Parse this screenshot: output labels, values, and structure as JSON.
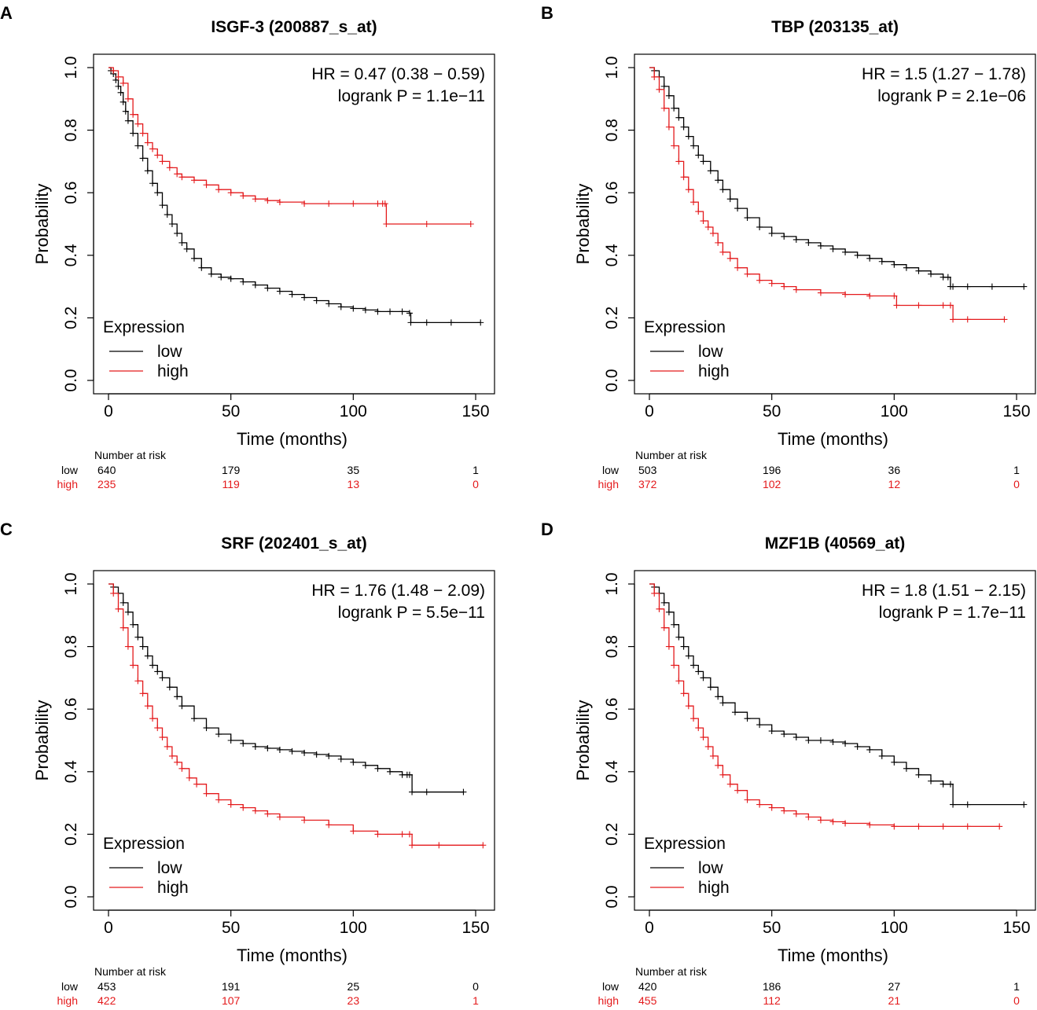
{
  "chart_data": [
    {
      "panel": "A",
      "type": "line",
      "subtype": "kaplan-meier",
      "title": "ISGF-3 (200887_s_at)",
      "xlabel": "Time (months)",
      "ylabel": "Probability",
      "xlim": [
        0,
        150
      ],
      "ylim": [
        0,
        1
      ],
      "xticks": [
        "0",
        "50",
        "100",
        "150"
      ],
      "yticks": [
        "0.0",
        "0.2",
        "0.4",
        "0.6",
        "0.8",
        "1.0"
      ],
      "hr_text": "HR = 0.47 (0.38 − 0.59)",
      "logrank_text": "logrank P = 1.1e−11",
      "legend_title": "Expression",
      "legend_labels": [
        "low",
        "high"
      ],
      "series": [
        {
          "name": "low",
          "color": "#000000",
          "x": [
            0,
            1,
            2,
            3,
            4,
            5,
            6,
            7,
            8,
            10,
            12,
            14,
            16,
            18,
            20,
            22,
            24,
            26,
            28,
            30,
            32,
            35,
            38,
            42,
            46,
            50,
            55,
            60,
            65,
            70,
            75,
            80,
            85,
            90,
            95,
            100,
            105,
            110,
            115,
            120,
            123,
            123.5,
            130,
            140,
            152
          ],
          "y": [
            1.0,
            0.99,
            0.98,
            0.96,
            0.94,
            0.92,
            0.89,
            0.86,
            0.83,
            0.79,
            0.75,
            0.71,
            0.67,
            0.63,
            0.6,
            0.56,
            0.53,
            0.5,
            0.47,
            0.44,
            0.42,
            0.39,
            0.36,
            0.34,
            0.33,
            0.325,
            0.315,
            0.305,
            0.295,
            0.285,
            0.275,
            0.265,
            0.255,
            0.245,
            0.235,
            0.23,
            0.225,
            0.22,
            0.22,
            0.22,
            0.215,
            0.185,
            0.185,
            0.185,
            0.185
          ]
        },
        {
          "name": "high",
          "color": "#e41a1c",
          "x": [
            0,
            2,
            4,
            6,
            8,
            10,
            12,
            14,
            16,
            18,
            20,
            22,
            25,
            28,
            30,
            35,
            40,
            45,
            50,
            55,
            60,
            65,
            70,
            80,
            90,
            100,
            110,
            112,
            113,
            113.5,
            130,
            148
          ],
          "y": [
            1.0,
            0.99,
            0.97,
            0.95,
            0.9,
            0.85,
            0.82,
            0.79,
            0.76,
            0.74,
            0.72,
            0.7,
            0.68,
            0.66,
            0.65,
            0.64,
            0.625,
            0.61,
            0.6,
            0.59,
            0.58,
            0.575,
            0.57,
            0.565,
            0.565,
            0.565,
            0.565,
            0.565,
            0.565,
            0.5,
            0.5,
            0.5
          ]
        }
      ],
      "risk_table": {
        "header": "Number at risk",
        "times": [
          0,
          50,
          100,
          150
        ],
        "rows": [
          {
            "label": "low",
            "color": "#000000",
            "values": [
              "640",
              "179",
              "35",
              "1"
            ]
          },
          {
            "label": "high",
            "color": "#e41a1c",
            "values": [
              "235",
              "119",
              "13",
              "0"
            ]
          }
        ]
      }
    },
    {
      "panel": "B",
      "type": "line",
      "subtype": "kaplan-meier",
      "title": "TBP (203135_at)",
      "xlabel": "Time (months)",
      "ylabel": "Probability",
      "xlim": [
        0,
        150
      ],
      "ylim": [
        0,
        1
      ],
      "xticks": [
        "0",
        "50",
        "100",
        "150"
      ],
      "yticks": [
        "0.0",
        "0.2",
        "0.4",
        "0.6",
        "0.8",
        "1.0"
      ],
      "hr_text": "HR = 1.5 (1.27 − 1.78)",
      "logrank_text": "logrank P = 2.1e−06",
      "legend_title": "Expression",
      "legend_labels": [
        "low",
        "high"
      ],
      "series": [
        {
          "name": "low",
          "color": "#000000",
          "x": [
            0,
            2,
            4,
            6,
            8,
            10,
            12,
            14,
            16,
            18,
            20,
            22,
            25,
            28,
            30,
            33,
            36,
            40,
            45,
            50,
            55,
            60,
            65,
            70,
            75,
            80,
            85,
            90,
            95,
            100,
            105,
            110,
            115,
            120,
            122,
            123,
            124,
            130,
            140,
            153
          ],
          "y": [
            1.0,
            0.99,
            0.97,
            0.94,
            0.91,
            0.87,
            0.84,
            0.81,
            0.78,
            0.75,
            0.72,
            0.7,
            0.67,
            0.64,
            0.61,
            0.58,
            0.55,
            0.52,
            0.49,
            0.47,
            0.46,
            0.45,
            0.44,
            0.43,
            0.42,
            0.41,
            0.4,
            0.39,
            0.38,
            0.37,
            0.36,
            0.35,
            0.34,
            0.33,
            0.33,
            0.3,
            0.3,
            0.3,
            0.3,
            0.3
          ]
        },
        {
          "name": "high",
          "color": "#e41a1c",
          "x": [
            0,
            2,
            4,
            6,
            8,
            10,
            12,
            14,
            16,
            18,
            20,
            22,
            24,
            26,
            28,
            30,
            33,
            36,
            40,
            45,
            50,
            55,
            60,
            70,
            80,
            90,
            100,
            101,
            110,
            120,
            123,
            124,
            130,
            145
          ],
          "y": [
            1.0,
            0.97,
            0.93,
            0.87,
            0.81,
            0.75,
            0.7,
            0.65,
            0.61,
            0.57,
            0.54,
            0.51,
            0.49,
            0.47,
            0.44,
            0.41,
            0.39,
            0.36,
            0.34,
            0.32,
            0.31,
            0.3,
            0.29,
            0.28,
            0.275,
            0.27,
            0.27,
            0.24,
            0.24,
            0.24,
            0.24,
            0.195,
            0.195,
            0.195
          ]
        }
      ],
      "risk_table": {
        "header": "Number at risk",
        "times": [
          0,
          50,
          100,
          150
        ],
        "rows": [
          {
            "label": "low",
            "color": "#000000",
            "values": [
              "503",
              "196",
              "36",
              "1"
            ]
          },
          {
            "label": "high",
            "color": "#e41a1c",
            "values": [
              "372",
              "102",
              "12",
              "0"
            ]
          }
        ]
      }
    },
    {
      "panel": "C",
      "type": "line",
      "subtype": "kaplan-meier",
      "title": "SRF (202401_s_at)",
      "xlabel": "Time (months)",
      "ylabel": "Probability",
      "xlim": [
        0,
        150
      ],
      "ylim": [
        0,
        1
      ],
      "xticks": [
        "0",
        "50",
        "100",
        "150"
      ],
      "yticks": [
        "0.0",
        "0.2",
        "0.4",
        "0.6",
        "0.8",
        "1.0"
      ],
      "hr_text": "HR = 1.76 (1.48 − 2.09)",
      "logrank_text": "logrank P = 5.5e−11",
      "legend_title": "Expression",
      "legend_labels": [
        "low",
        "high"
      ],
      "series": [
        {
          "name": "low",
          "color": "#000000",
          "x": [
            0,
            2,
            4,
            6,
            8,
            10,
            12,
            14,
            16,
            18,
            20,
            22,
            25,
            28,
            30,
            35,
            40,
            45,
            50,
            55,
            60,
            65,
            70,
            75,
            80,
            85,
            90,
            95,
            100,
            105,
            110,
            115,
            120,
            122,
            123,
            124,
            130,
            145
          ],
          "y": [
            1.0,
            0.99,
            0.97,
            0.94,
            0.91,
            0.87,
            0.83,
            0.8,
            0.77,
            0.74,
            0.72,
            0.7,
            0.67,
            0.64,
            0.61,
            0.57,
            0.54,
            0.52,
            0.5,
            0.49,
            0.48,
            0.475,
            0.47,
            0.465,
            0.46,
            0.455,
            0.45,
            0.44,
            0.43,
            0.42,
            0.41,
            0.4,
            0.39,
            0.39,
            0.39,
            0.335,
            0.335,
            0.335
          ]
        },
        {
          "name": "high",
          "color": "#e41a1c",
          "x": [
            0,
            2,
            4,
            6,
            8,
            10,
            12,
            14,
            16,
            18,
            20,
            22,
            24,
            26,
            28,
            30,
            33,
            36,
            40,
            45,
            50,
            55,
            60,
            65,
            70,
            80,
            90,
            100,
            110,
            120,
            123,
            124,
            135,
            153
          ],
          "y": [
            1.0,
            0.97,
            0.92,
            0.86,
            0.8,
            0.74,
            0.69,
            0.65,
            0.61,
            0.57,
            0.54,
            0.51,
            0.48,
            0.45,
            0.43,
            0.41,
            0.38,
            0.36,
            0.33,
            0.31,
            0.295,
            0.285,
            0.275,
            0.265,
            0.255,
            0.245,
            0.23,
            0.21,
            0.2,
            0.2,
            0.2,
            0.165,
            0.165,
            0.165
          ]
        }
      ],
      "risk_table": {
        "header": "Number at risk",
        "times": [
          0,
          50,
          100,
          150
        ],
        "rows": [
          {
            "label": "low",
            "color": "#000000",
            "values": [
              "453",
              "191",
              "25",
              "0"
            ]
          },
          {
            "label": "high",
            "color": "#e41a1c",
            "values": [
              "422",
              "107",
              "23",
              "1"
            ]
          }
        ]
      }
    },
    {
      "panel": "D",
      "type": "line",
      "subtype": "kaplan-meier",
      "title": "MZF1B (40569_at)",
      "xlabel": "Time (months)",
      "ylabel": "Probability",
      "xlim": [
        0,
        150
      ],
      "ylim": [
        0,
        1
      ],
      "xticks": [
        "0",
        "50",
        "100",
        "150"
      ],
      "yticks": [
        "0.0",
        "0.2",
        "0.4",
        "0.6",
        "0.8",
        "1.0"
      ],
      "hr_text": "HR = 1.8 (1.51 − 2.15)",
      "logrank_text": "logrank P = 1.7e−11",
      "legend_title": "Expression",
      "legend_labels": [
        "low",
        "high"
      ],
      "series": [
        {
          "name": "low",
          "color": "#000000",
          "x": [
            0,
            2,
            4,
            6,
            8,
            10,
            12,
            14,
            16,
            18,
            20,
            22,
            25,
            28,
            30,
            35,
            40,
            45,
            50,
            55,
            60,
            65,
            70,
            75,
            80,
            85,
            90,
            95,
            100,
            105,
            110,
            115,
            120,
            123,
            124,
            130,
            153
          ],
          "y": [
            1.0,
            0.99,
            0.97,
            0.94,
            0.91,
            0.87,
            0.83,
            0.8,
            0.77,
            0.74,
            0.72,
            0.7,
            0.67,
            0.64,
            0.62,
            0.59,
            0.57,
            0.55,
            0.53,
            0.52,
            0.51,
            0.5,
            0.5,
            0.495,
            0.49,
            0.48,
            0.47,
            0.45,
            0.43,
            0.41,
            0.39,
            0.37,
            0.36,
            0.36,
            0.295,
            0.295,
            0.295
          ]
        },
        {
          "name": "high",
          "color": "#e41a1c",
          "x": [
            0,
            2,
            4,
            6,
            8,
            10,
            12,
            14,
            16,
            18,
            20,
            22,
            24,
            26,
            28,
            30,
            33,
            36,
            40,
            45,
            50,
            55,
            60,
            65,
            70,
            75,
            80,
            90,
            100,
            110,
            120,
            130,
            143
          ],
          "y": [
            1.0,
            0.97,
            0.92,
            0.86,
            0.8,
            0.74,
            0.69,
            0.65,
            0.61,
            0.57,
            0.54,
            0.51,
            0.48,
            0.45,
            0.42,
            0.39,
            0.36,
            0.34,
            0.31,
            0.295,
            0.285,
            0.275,
            0.265,
            0.255,
            0.245,
            0.24,
            0.235,
            0.23,
            0.225,
            0.225,
            0.225,
            0.225,
            0.225
          ]
        }
      ],
      "risk_table": {
        "header": "Number at risk",
        "times": [
          0,
          50,
          100,
          150
        ],
        "rows": [
          {
            "label": "low",
            "color": "#000000",
            "values": [
              "420",
              "186",
              "27",
              "1"
            ]
          },
          {
            "label": "high",
            "color": "#e41a1c",
            "values": [
              "455",
              "112",
              "21",
              "0"
            ]
          }
        ]
      }
    }
  ]
}
